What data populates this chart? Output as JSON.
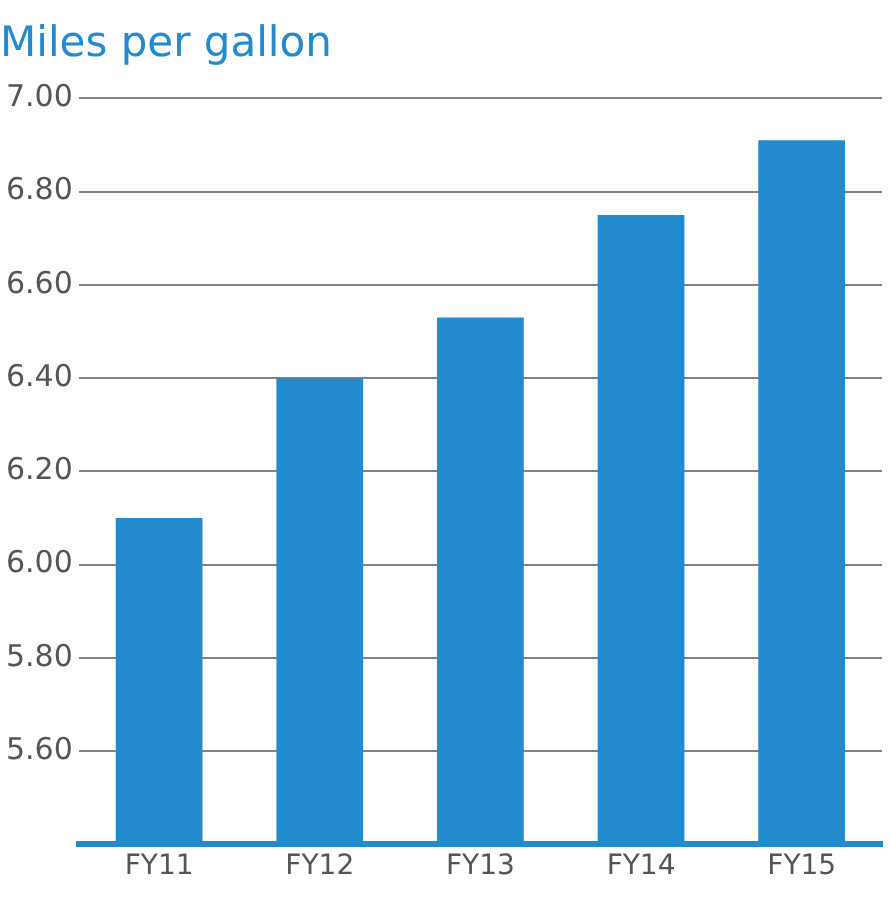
{
  "chart_data": {
    "type": "bar",
    "title": "Miles per gallon",
    "categories": [
      "FY11",
      "FY12",
      "FY13",
      "FY14",
      "FY15"
    ],
    "values": [
      6.1,
      6.4,
      6.53,
      6.75,
      6.91
    ],
    "color": "#238ace",
    "ylim": [
      5.4,
      7.0
    ],
    "yticks": [
      {
        "value": 5.4,
        "label": null
      },
      {
        "value": 5.6,
        "label": "5.60"
      },
      {
        "value": 5.8,
        "label": "5.80"
      },
      {
        "value": 6.0,
        "label": "6.00"
      },
      {
        "value": 6.2,
        "label": "6.20"
      },
      {
        "value": 6.4,
        "label": "6.40"
      },
      {
        "value": 6.6,
        "label": "6.60"
      },
      {
        "value": 6.8,
        "label": "6.80"
      },
      {
        "value": 7.0,
        "label": "7.00"
      }
    ],
    "grid": "y",
    "legend": false
  }
}
